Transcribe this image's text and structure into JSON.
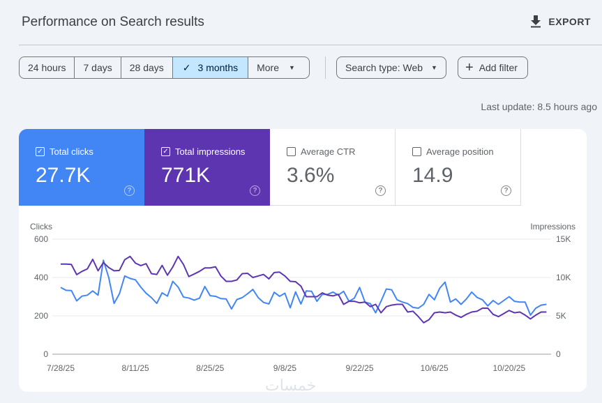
{
  "header": {
    "title": "Performance on Search results",
    "export_label": "EXPORT",
    "export_icon": "download-icon"
  },
  "date_range": {
    "options": [
      "24 hours",
      "7 days",
      "28 days",
      "3 months",
      "More"
    ],
    "selected": "3 months"
  },
  "filters": {
    "search_type": "Search type: Web",
    "add_filter": "Add filter"
  },
  "last_update": "Last update: 8.5 hours ago",
  "metrics": [
    {
      "label": "Total clicks",
      "value": "27.7K",
      "checked": true,
      "color": "#4285f4"
    },
    {
      "label": "Total impressions",
      "value": "771K",
      "checked": true,
      "color": "#5e35b1"
    },
    {
      "label": "Average CTR",
      "value": "3.6%",
      "checked": false
    },
    {
      "label": "Average position",
      "value": "14.9",
      "checked": false
    }
  ],
  "watermark": "خمسات",
  "chart_data": {
    "type": "line",
    "ylabel_left": "Clicks",
    "ylabel_right": "Impressions",
    "ylim_left": [
      0,
      600
    ],
    "ylim_right": [
      0,
      15000
    ],
    "yticks_left": [
      "0",
      "200",
      "400",
      "600"
    ],
    "yticks_right": [
      "0",
      "5K",
      "10K",
      "15K"
    ],
    "x_ticks": [
      "7/28/25",
      "8/11/25",
      "8/25/25",
      "9/8/25",
      "9/22/25",
      "10/6/25",
      "10/20/25"
    ],
    "x_range": [
      "2025-07-28",
      "2025-10-27"
    ],
    "grid": true,
    "series": [
      {
        "name": "Clicks",
        "axis": "left",
        "color": "#4285f4",
        "values": [
          348,
          333,
          332,
          278,
          303,
          308,
          330,
          308,
          490,
          400,
          265,
          315,
          408,
          395,
          388,
          350,
          318,
          295,
          265,
          320,
          303,
          380,
          350,
          298,
          293,
          282,
          292,
          353,
          305,
          302,
          290,
          288,
          236,
          285,
          295,
          315,
          338,
          295,
          270,
          262,
          323,
          302,
          318,
          242,
          325,
          262,
          330,
          328,
          276,
          312,
          312,
          324,
          308,
          328,
          276,
          292,
          348,
          272,
          264,
          216,
          276,
          340,
          336,
          284,
          272,
          264,
          244,
          240,
          260,
          312,
          284,
          344,
          376,
          272,
          288,
          260,
          288,
          324,
          296,
          284,
          252,
          280,
          260,
          280,
          300,
          276,
          272,
          272,
          204,
          240,
          256,
          260
        ]
      },
      {
        "name": "Impressions",
        "axis": "right",
        "color": "#5e35b1",
        "values": [
          11750,
          11750,
          11700,
          10375,
          10800,
          11125,
          12375,
          10875,
          11950,
          11300,
          10875,
          10925,
          12325,
          12750,
          11875,
          11550,
          11800,
          10500,
          10400,
          11575,
          10300,
          11375,
          12750,
          11700,
          10125,
          10450,
          10800,
          11250,
          11250,
          11400,
          10200,
          9500,
          9500,
          9675,
          10500,
          10550,
          10000,
          10200,
          10400,
          9825,
          10650,
          10700,
          10200,
          9500,
          9450,
          8875,
          7500,
          7500,
          7500,
          8000,
          7700,
          7600,
          7800,
          6500,
          6900,
          6900,
          6700,
          6800,
          6200,
          6500,
          5400,
          6200,
          6400,
          6500,
          6500,
          5500,
          5600,
          4900,
          4100,
          4500,
          5400,
          5500,
          5400,
          5500,
          5100,
          4800,
          5200,
          5500,
          5600,
          6000,
          6000,
          5200,
          4900,
          5300,
          5700,
          5400,
          5500,
          5100,
          4600,
          5100,
          5500,
          5500
        ]
      }
    ]
  }
}
